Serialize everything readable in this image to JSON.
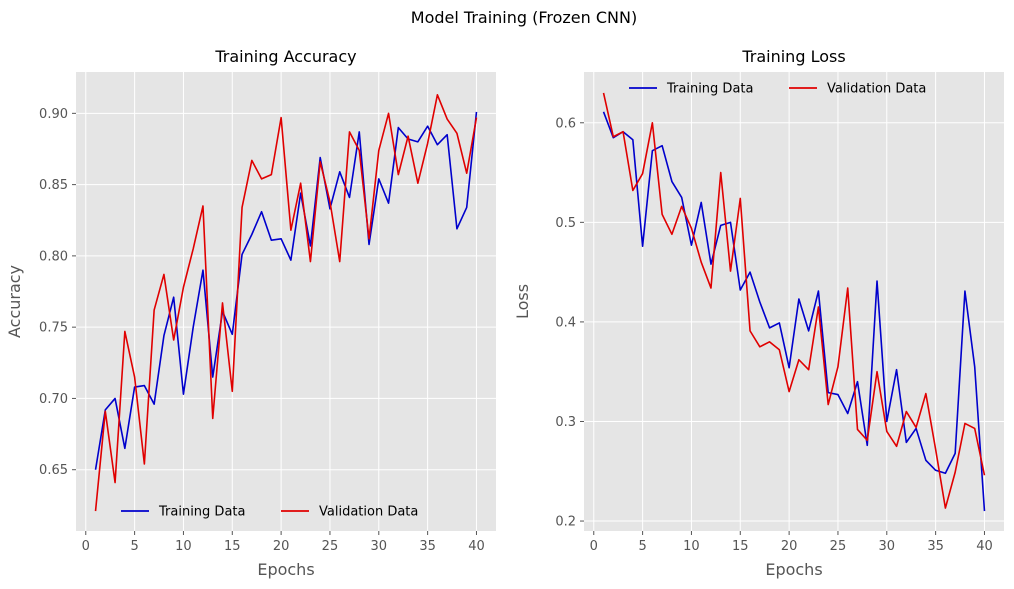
{
  "figure": {
    "suptitle": "Model Training (Frozen CNN)",
    "background": "#e5e5e5",
    "grid_color": "#ffffff",
    "tick_color": "#555555"
  },
  "chart_data": [
    {
      "type": "line",
      "title": "Training Accuracy",
      "xlabel": "Epochs",
      "ylabel": "Accuracy",
      "xlim": [
        -1,
        42
      ],
      "ylim": [
        0.607,
        0.929
      ],
      "xticks": [
        0,
        5,
        10,
        15,
        20,
        25,
        30,
        35,
        40
      ],
      "yticks": [
        0.65,
        0.7,
        0.75,
        0.8,
        0.85,
        0.9
      ],
      "ytick_labels": [
        "0.65",
        "0.70",
        "0.75",
        "0.80",
        "0.85",
        "0.90"
      ],
      "grid": true,
      "legend": {
        "placement": "lower-center",
        "ncol": 2
      },
      "x": [
        1,
        2,
        3,
        4,
        5,
        6,
        7,
        8,
        9,
        10,
        11,
        12,
        13,
        14,
        15,
        16,
        17,
        18,
        19,
        20,
        21,
        22,
        23,
        24,
        25,
        26,
        27,
        28,
        29,
        30,
        31,
        32,
        33,
        34,
        35,
        36,
        37,
        38,
        39,
        40
      ],
      "series": [
        {
          "name": "Training Data",
          "color": "#0000cc",
          "values": [
            0.65,
            0.692,
            0.7,
            0.665,
            0.708,
            0.709,
            0.696,
            0.744,
            0.771,
            0.703,
            0.75,
            0.79,
            0.715,
            0.761,
            0.745,
            0.801,
            0.815,
            0.831,
            0.811,
            0.812,
            0.797,
            0.844,
            0.807,
            0.869,
            0.833,
            0.859,
            0.841,
            0.887,
            0.808,
            0.854,
            0.837,
            0.89,
            0.882,
            0.88,
            0.891,
            0.878,
            0.885,
            0.819,
            0.834,
            0.901
          ]
        },
        {
          "name": "Validation Data",
          "color": "#e00000",
          "values": [
            0.621,
            0.691,
            0.641,
            0.747,
            0.715,
            0.654,
            0.762,
            0.787,
            0.741,
            0.778,
            0.805,
            0.835,
            0.686,
            0.767,
            0.705,
            0.834,
            0.867,
            0.854,
            0.857,
            0.897,
            0.818,
            0.851,
            0.796,
            0.866,
            0.838,
            0.796,
            0.887,
            0.874,
            0.812,
            0.874,
            0.9,
            0.857,
            0.884,
            0.851,
            0.879,
            0.913,
            0.896,
            0.886,
            0.858,
            0.897
          ]
        }
      ]
    },
    {
      "type": "line",
      "title": "Training Loss",
      "xlabel": "Epochs",
      "ylabel": "Loss",
      "xlim": [
        -1,
        42
      ],
      "ylim": [
        0.19,
        0.651
      ],
      "xticks": [
        0,
        5,
        10,
        15,
        20,
        25,
        30,
        35,
        40
      ],
      "yticks": [
        0.2,
        0.3,
        0.4,
        0.5,
        0.6
      ],
      "ytick_labels": [
        "0.2",
        "0.3",
        "0.4",
        "0.5",
        "0.6"
      ],
      "grid": true,
      "legend": {
        "placement": "upper-center",
        "ncol": 2
      },
      "x": [
        1,
        2,
        3,
        4,
        5,
        6,
        7,
        8,
        9,
        10,
        11,
        12,
        13,
        14,
        15,
        16,
        17,
        18,
        19,
        20,
        21,
        22,
        23,
        24,
        25,
        26,
        27,
        28,
        29,
        30,
        31,
        32,
        33,
        34,
        35,
        36,
        37,
        38,
        39,
        40
      ],
      "series": [
        {
          "name": "Training Data",
          "color": "#0000cc",
          "values": [
            0.611,
            0.585,
            0.591,
            0.583,
            0.476,
            0.572,
            0.577,
            0.541,
            0.525,
            0.477,
            0.52,
            0.458,
            0.497,
            0.5,
            0.432,
            0.45,
            0.42,
            0.394,
            0.399,
            0.354,
            0.423,
            0.391,
            0.431,
            0.329,
            0.327,
            0.308,
            0.34,
            0.276,
            0.441,
            0.3,
            0.352,
            0.279,
            0.293,
            0.261,
            0.251,
            0.248,
            0.268,
            0.431,
            0.355,
            0.21
          ]
        },
        {
          "name": "Validation Data",
          "color": "#e00000",
          "values": [
            0.63,
            0.586,
            0.591,
            0.532,
            0.549,
            0.6,
            0.508,
            0.488,
            0.516,
            0.494,
            0.46,
            0.434,
            0.55,
            0.451,
            0.524,
            0.391,
            0.375,
            0.38,
            0.372,
            0.33,
            0.362,
            0.352,
            0.415,
            0.317,
            0.355,
            0.434,
            0.292,
            0.281,
            0.35,
            0.29,
            0.275,
            0.31,
            0.294,
            0.328,
            0.272,
            0.213,
            0.249,
            0.298,
            0.293,
            0.246
          ]
        }
      ]
    }
  ]
}
